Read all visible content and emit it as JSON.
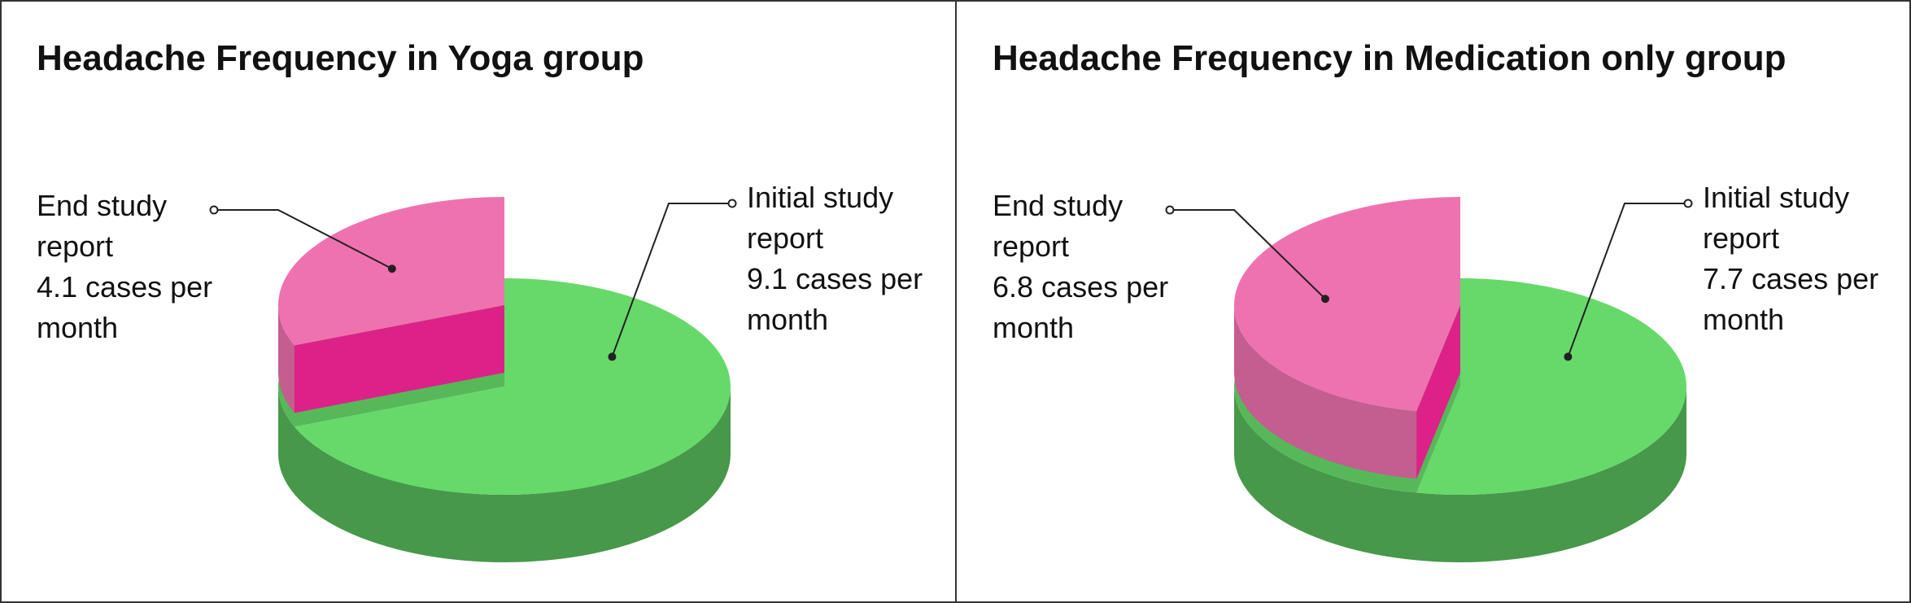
{
  "chart_data": [
    {
      "type": "pie3d",
      "title": "Headache Frequency in Yoga group",
      "categories": [
        "End study report",
        "Initial study report"
      ],
      "values": [
        4.1,
        9.1
      ],
      "value_labels": [
        "4.1 cases per month",
        "9.1 cases per month"
      ],
      "colors": [
        "#ef72b0",
        "#66d96a"
      ]
    },
    {
      "type": "pie3d",
      "title": "Headache Frequency in Medication only group",
      "categories": [
        "End study report",
        "Initial study report"
      ],
      "values": [
        6.8,
        7.7
      ],
      "value_labels": [
        "6.8 cases per month",
        "7.7 cases per month"
      ],
      "colors": [
        "#ef72b0",
        "#66d96a"
      ]
    }
  ]
}
